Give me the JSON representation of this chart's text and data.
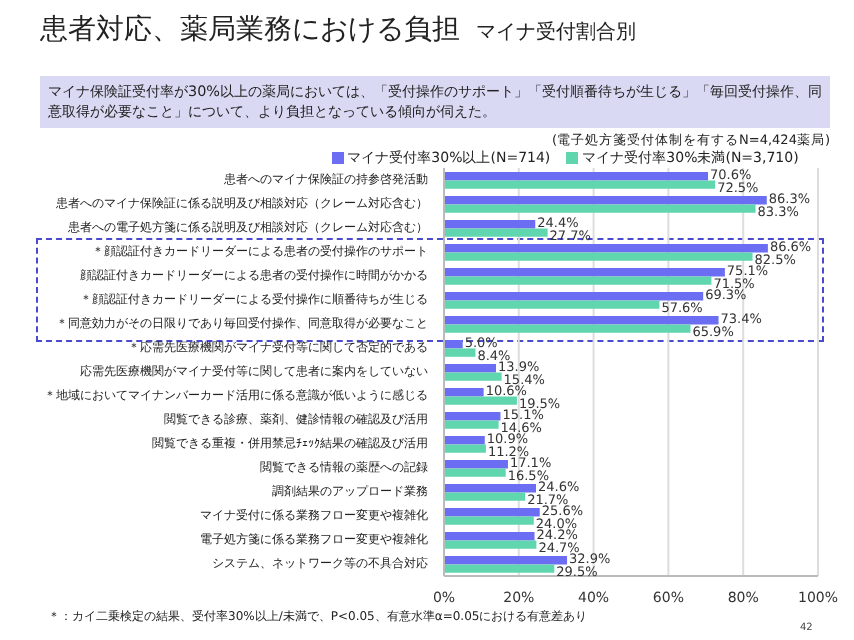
{
  "chart_data": {
    "type": "bar",
    "orientation": "horizontal",
    "title": "患者対応、薬局業務における負担",
    "subtitle": "マイナ受付割合別",
    "annotations": [
      "マイナ保険証受付率が30%以上の薬局においては、「受付操作のサポート」「受付順番待ちが生じる」「毎回受付操作、同意取得が必要なこと」について、より負担となっている傾向が伺えた。",
      "(電子処方箋受付体制を有するN=4,424薬局)",
      "＊：カイ二乗検定の結果、受付率30%以上/未満で、P<0.05、有意水準α=0.05における有意差あり",
      "42"
    ],
    "categories": [
      "患者へのマイナ保険証の持参啓発活動",
      "患者へのマイナ保険証に係る説明及び相談対応（クレーム対応含む）",
      "患者への電子処方箋に係る説明及び相談対応（クレーム対応含む）",
      "＊顔認証付きカードリーダーによる患者の受付操作のサポート",
      "顔認証付きカードリーダーによる患者の受付操作に時間がかかる",
      "＊顔認証付きカードリーダーによる受付操作に順番待ちが生じる",
      "＊同意効力がその日限りであり毎回受付操作、同意取得が必要なこと",
      "＊応需先医療機関がマイナ受付等に関して否定的である",
      "応需先医療機関がマイナ受付等に関して患者に案内をしていない",
      "＊地域においてマイナンバーカード活用に係る意識が低いように感じる",
      "閲覧できる診療、薬剤、健診情報の確認及び活用",
      "閲覧できる重複・併用禁忌ﾁｪｯｸ結果の確認及び活用",
      "閲覧できる情報の薬歴への記録",
      "調剤結果のアップロード業務",
      "マイナ受付に係る業務フロー変更や複雑化",
      "電子処方箋に係る業務フロー変更や複雑化",
      "システム、ネットワーク等の不具合対応"
    ],
    "series": [
      {
        "name": "マイナ受付率30%以上(N=714)",
        "color": "#6b6df2",
        "values": [
          70.6,
          86.3,
          24.4,
          86.6,
          75.1,
          69.3,
          73.4,
          5.0,
          13.9,
          10.6,
          15.1,
          10.9,
          17.1,
          24.6,
          25.6,
          24.2,
          32.9
        ],
        "value_labels": [
          "70.6%",
          "86.3%",
          "24.4%",
          "86.6%",
          "75.1%",
          "69.3%",
          "73.4%",
          "5.0%",
          "13.9%",
          "10.6%",
          "15.1%",
          "10.9%",
          "17.1%",
          "24.6%",
          "25.6%",
          "24.2%",
          "32.9%"
        ]
      },
      {
        "name": "マイナ受付率30%未満(N=3,710)",
        "color": "#5fd6ae",
        "values": [
          72.5,
          83.3,
          27.7,
          82.5,
          71.5,
          57.6,
          65.9,
          8.4,
          15.4,
          19.5,
          14.6,
          11.2,
          16.5,
          21.7,
          24.0,
          24.7,
          29.5
        ],
        "value_labels": [
          "72.5%",
          "83.3%",
          "27.7%",
          "82.5%",
          "71.5%",
          "57.6%",
          "65.9%",
          "8.4%",
          "15.4%",
          "19.5%",
          "14.6%",
          "11.2%",
          "16.5%",
          "21.7%",
          "24.0%",
          "24.7%",
          "29.5%"
        ]
      }
    ],
    "xlim": [
      0,
      100
    ],
    "xticks": [
      {
        "value": 0,
        "label": "0%"
      },
      {
        "value": 20,
        "label": "20%"
      },
      {
        "value": 40,
        "label": "40%"
      },
      {
        "value": 60,
        "label": "60%"
      },
      {
        "value": 80,
        "label": "80%"
      },
      {
        "value": 100,
        "label": "100%"
      }
    ],
    "grid": "x",
    "legend": "top"
  }
}
